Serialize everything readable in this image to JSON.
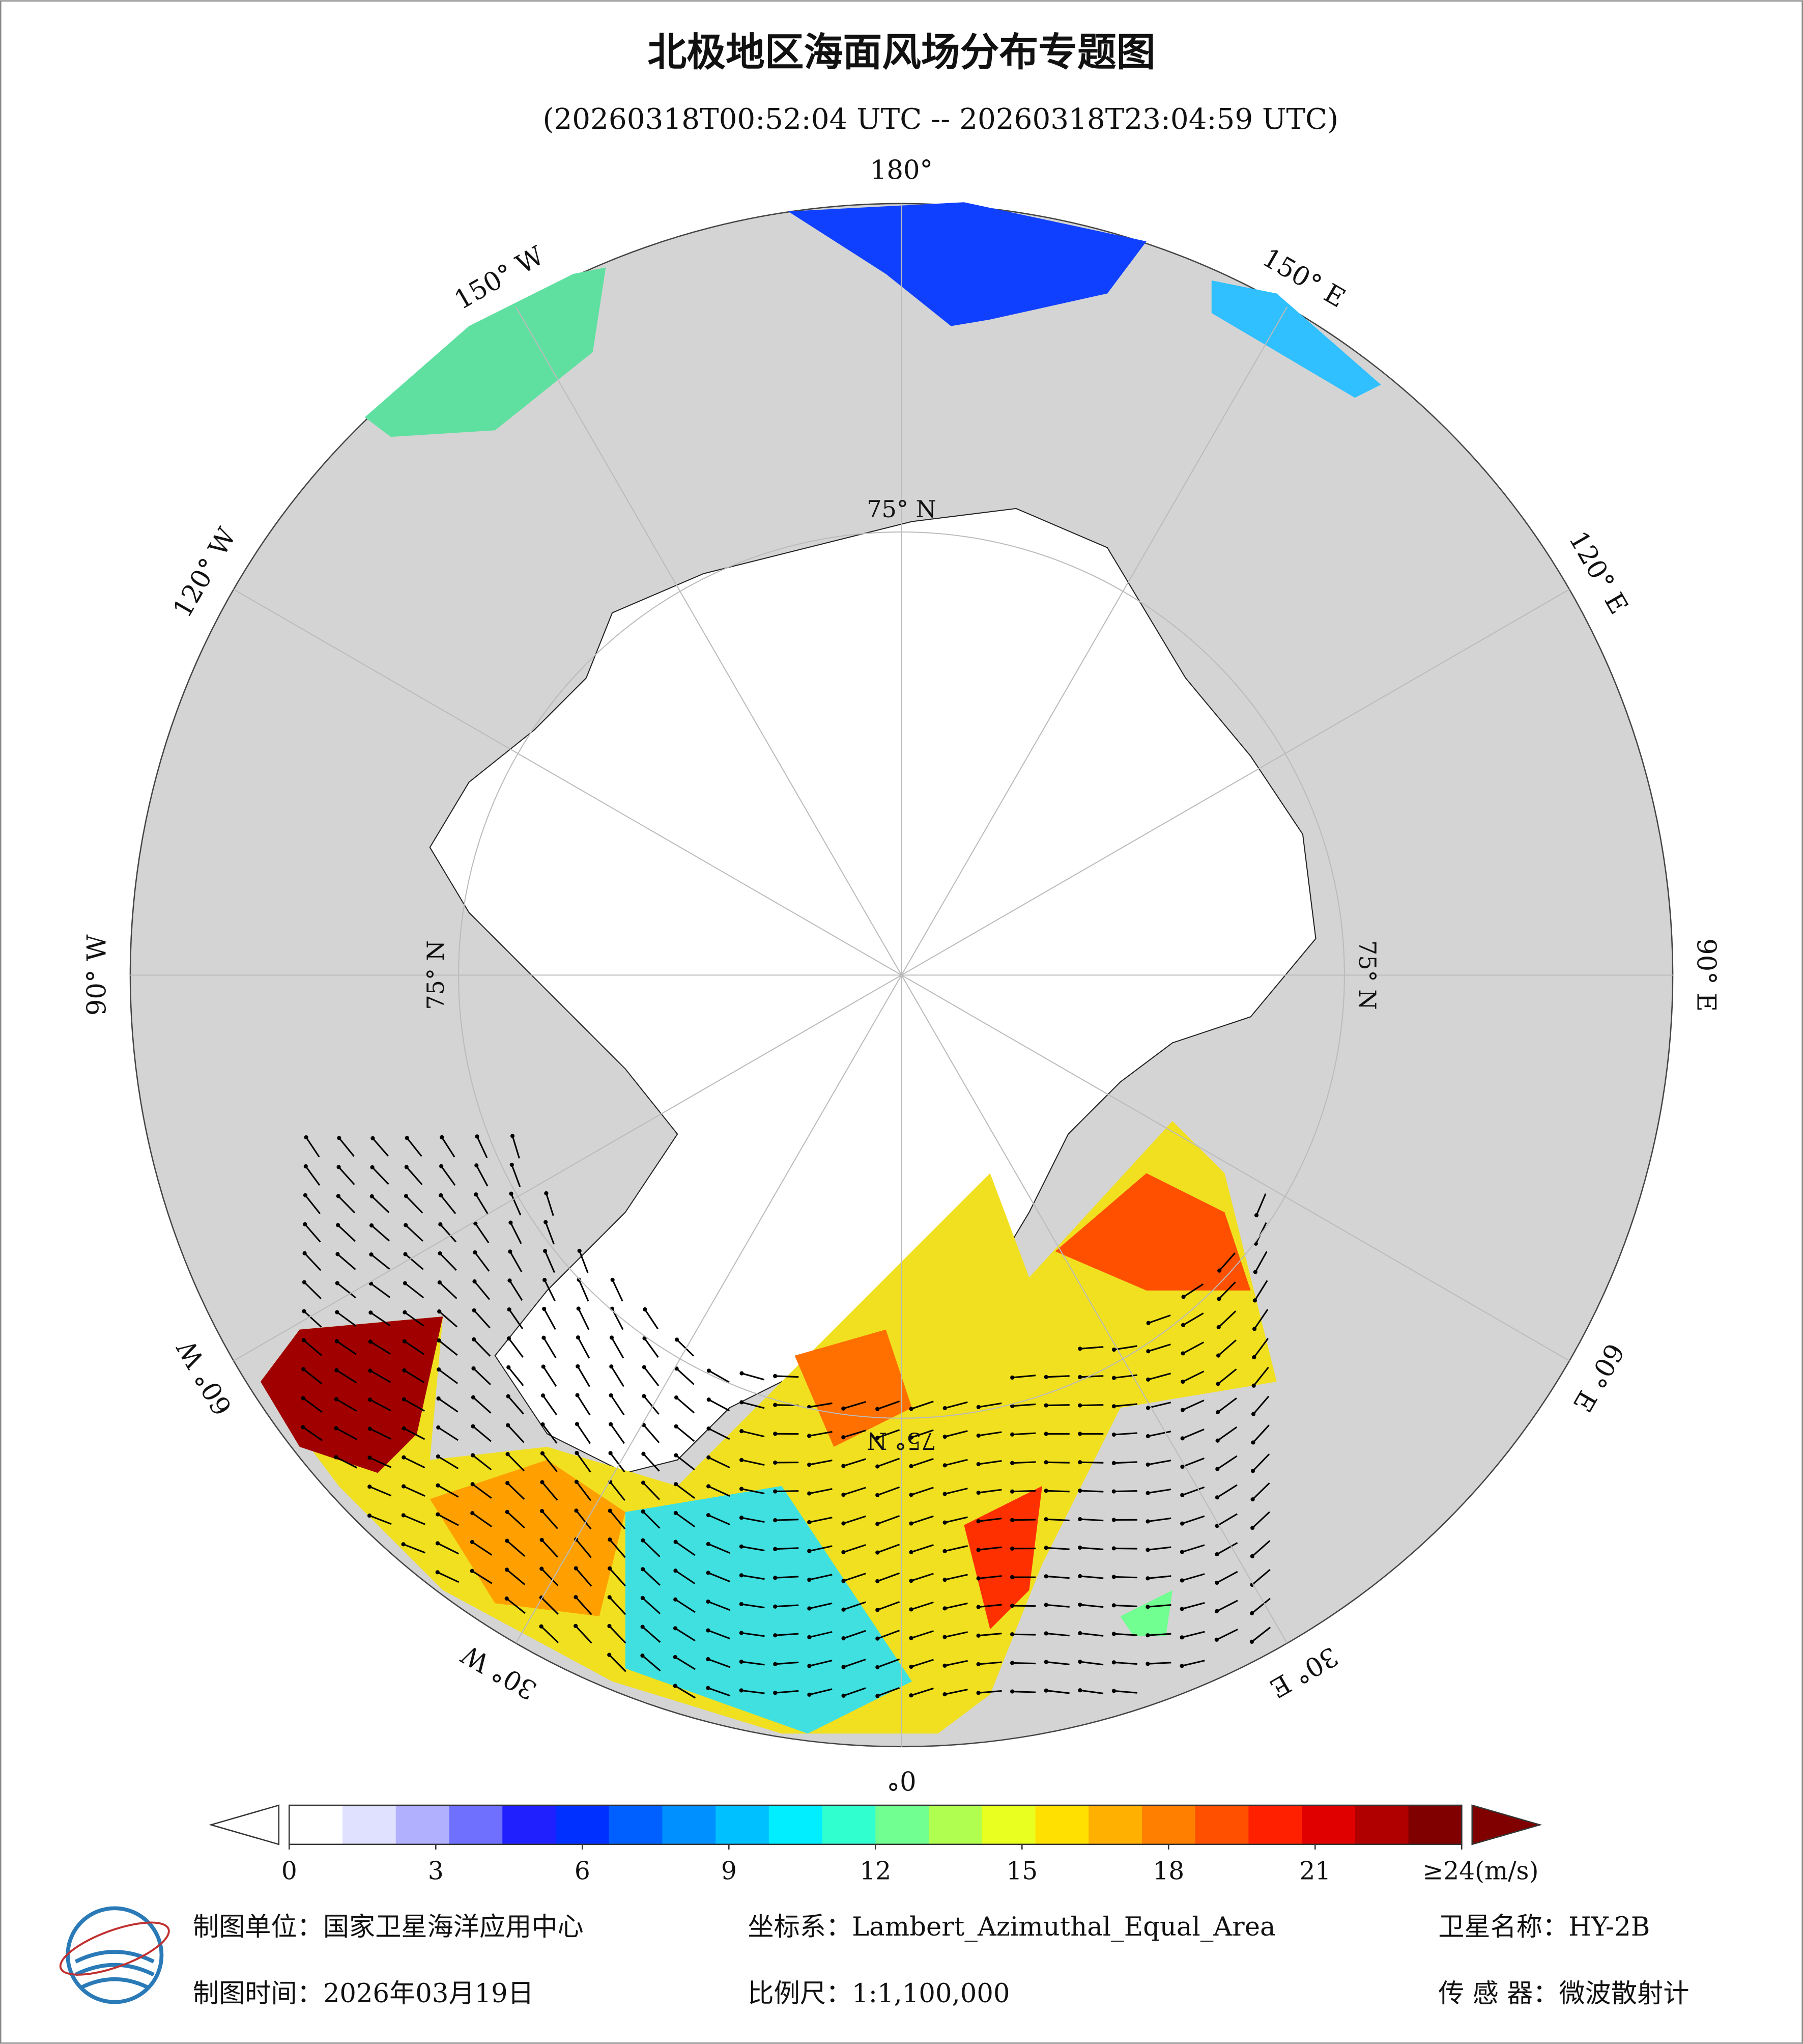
{
  "header": {
    "title": "北极地区海面风场分布专题图",
    "subtitle": "(20260318T00:52:04 UTC -- 20260318T23:04:59 UTC)"
  },
  "map": {
    "longitude_labels": [
      "180°",
      "150° E",
      "120° E",
      "90° E",
      "60° E",
      "30° E",
      "0°",
      "30° W",
      "60° W",
      "90° W",
      "120° W",
      "150° W"
    ],
    "latitude_labels": [
      "75° N",
      "75° N",
      "75° N",
      "75° N"
    ]
  },
  "colorbar": {
    "lim": [
      0,
      24
    ],
    "ticks": [
      0,
      3,
      6,
      9,
      12,
      15,
      18,
      21,
      {
        "value": 24,
        "label": "≥24(m/s)"
      }
    ],
    "colors": [
      "#ffffff",
      "#e0e0ff",
      "#b0b0ff",
      "#7070ff",
      "#2020ff",
      "#0030ff",
      "#0060ff",
      "#0090ff",
      "#00c0ff",
      "#00eeff",
      "#30ffd0",
      "#70ff90",
      "#b0ff50",
      "#e8ff20",
      "#ffe000",
      "#ffb000",
      "#ff8000",
      "#ff5000",
      "#ff2000",
      "#e00000",
      "#b00000",
      "#800000"
    ],
    "under_color": "#ffffff",
    "over_color": "#800000"
  },
  "footer": {
    "unit": "制图单位：国家卫星海洋应用中心",
    "crs": "坐标系：Lambert_Azimuthal_Equal_Area",
    "satellite": "卫星名称：HY-2B",
    "date": "制图时间：2026年03月19日",
    "scale": "比例尺：1:1,100,000",
    "sensor": "传 感 器：微波散射计"
  }
}
